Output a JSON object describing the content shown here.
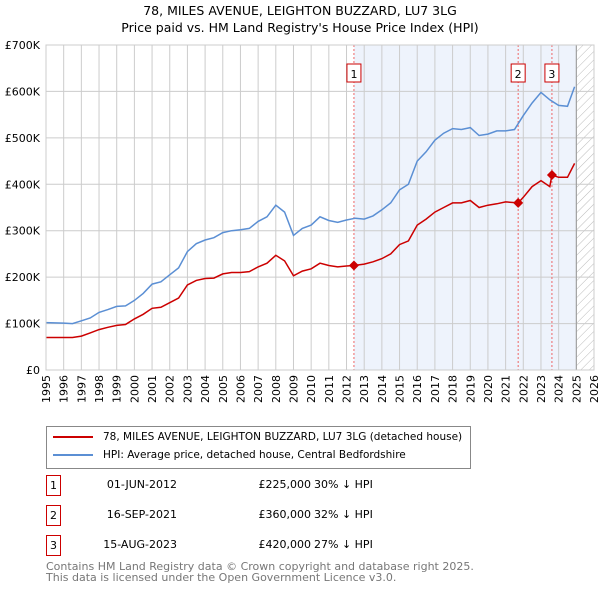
{
  "title": "78, MILES AVENUE, LEIGHTON BUZZARD, LU7 3LG",
  "subtitle": "Price paid vs. HM Land Registry's House Price Index (HPI)",
  "chart_data": {
    "type": "line",
    "xlim": [
      1995,
      2026
    ],
    "ylim": [
      0,
      700000
    ],
    "xticks": [
      "1995",
      "1996",
      "1997",
      "1998",
      "1999",
      "2000",
      "2001",
      "2002",
      "2003",
      "2004",
      "2005",
      "2006",
      "2007",
      "2008",
      "2009",
      "2010",
      "2011",
      "2012",
      "2013",
      "2014",
      "2015",
      "2016",
      "2017",
      "2018",
      "2019",
      "2020",
      "2021",
      "2022",
      "2023",
      "2024",
      "2025",
      "2026"
    ],
    "yticks": [
      {
        "v": 0,
        "label": "£0"
      },
      {
        "v": 100000,
        "label": "£100K"
      },
      {
        "v": 200000,
        "label": "£200K"
      },
      {
        "v": 300000,
        "label": "£300K"
      },
      {
        "v": 400000,
        "label": "£400K"
      },
      {
        "v": 500000,
        "label": "£500K"
      },
      {
        "v": 600000,
        "label": "£600K"
      },
      {
        "v": 700000,
        "label": "£700K"
      }
    ],
    "shaded_range": [
      2012.42,
      2025
    ],
    "hatched_range": [
      2025,
      2026
    ],
    "series": [
      {
        "name": "78, MILES AVENUE, LEIGHTON BUZZARD, LU7 3LG (detached house)",
        "color": "#cc0000",
        "x": [
          1995,
          1996,
          1996.5,
          1997,
          1997.5,
          1998,
          1998.5,
          1999,
          1999.5,
          2000,
          2000.5,
          2001,
          2001.5,
          2002,
          2002.5,
          2003,
          2003.5,
          2004,
          2004.5,
          2005,
          2005.5,
          2006,
          2006.5,
          2007,
          2007.5,
          2008,
          2008.5,
          2009,
          2009.5,
          2010,
          2010.5,
          2011,
          2011.5,
          2012,
          2012.42,
          2013,
          2013.5,
          2014,
          2014.5,
          2015,
          2015.5,
          2016,
          2016.5,
          2017,
          2017.5,
          2018,
          2018.5,
          2019,
          2019.5,
          2020,
          2020.5,
          2021,
          2021.71,
          2022,
          2022.5,
          2023,
          2023.5,
          2023.62,
          2024,
          2024.5,
          2024.9
        ],
        "y": [
          70,
          70,
          70,
          73,
          80,
          87,
          92,
          96,
          98,
          110,
          120,
          133,
          135,
          145,
          155,
          183,
          193,
          197,
          198,
          207,
          210,
          210,
          212,
          222,
          230,
          247,
          235,
          203,
          213,
          218,
          230,
          225,
          222,
          224,
          225,
          228,
          233,
          240,
          250,
          270,
          278,
          312,
          325,
          340,
          350,
          360,
          360,
          365,
          350,
          355,
          358,
          362,
          360,
          372,
          395,
          408,
          395,
          420,
          415,
          415,
          445
        ]
      },
      {
        "name": "HPI: Average price, detached house, Central Bedfordshire",
        "color": "#5b8fd4",
        "x": [
          1995,
          1996,
          1996.5,
          1997,
          1997.5,
          1998,
          1998.5,
          1999,
          1999.5,
          2000,
          2000.5,
          2001,
          2001.5,
          2002,
          2002.5,
          2003,
          2003.5,
          2004,
          2004.5,
          2005,
          2005.5,
          2006,
          2006.5,
          2007,
          2007.5,
          2008,
          2008.5,
          2009,
          2009.5,
          2010,
          2010.5,
          2011,
          2011.5,
          2012,
          2012.5,
          2013,
          2013.5,
          2014,
          2014.5,
          2015,
          2015.5,
          2016,
          2016.5,
          2017,
          2017.5,
          2018,
          2018.5,
          2019,
          2019.5,
          2020,
          2020.5,
          2021,
          2021.5,
          2022,
          2022.5,
          2023,
          2023.5,
          2024,
          2024.5,
          2024.9
        ],
        "y": [
          102,
          101,
          100,
          106,
          112,
          124,
          130,
          137,
          138,
          150,
          165,
          185,
          190,
          205,
          220,
          255,
          272,
          280,
          285,
          296,
          300,
          302,
          305,
          320,
          330,
          355,
          340,
          290,
          305,
          312,
          330,
          322,
          318,
          323,
          327,
          325,
          332,
          345,
          360,
          388,
          400,
          450,
          470,
          495,
          510,
          520,
          518,
          522,
          505,
          508,
          515,
          515,
          518,
          548,
          575,
          598,
          582,
          570,
          568,
          610
        ]
      }
    ],
    "y_units": "thousands GBP",
    "sales": [
      {
        "id": "1",
        "x": 2012.42,
        "y": 225
      },
      {
        "id": "2",
        "x": 2021.71,
        "y": 360
      },
      {
        "id": "3",
        "x": 2023.62,
        "y": 420
      }
    ]
  },
  "legend": [
    "78, MILES AVENUE, LEIGHTON BUZZARD, LU7 3LG (detached house)",
    "HPI: Average price, detached house, Central Bedfordshire"
  ],
  "transactions": [
    {
      "id": "1",
      "date": "01-JUN-2012",
      "price": "£225,000",
      "hpi": "30% ↓ HPI"
    },
    {
      "id": "2",
      "date": "16-SEP-2021",
      "price": "£360,000",
      "hpi": "32% ↓ HPI"
    },
    {
      "id": "3",
      "date": "15-AUG-2023",
      "price": "£420,000",
      "hpi": "27% ↓ HPI"
    }
  ],
  "footer": [
    "Contains HM Land Registry data © Crown copyright and database right 2025.",
    "This data is licensed under the Open Government Licence v3.0."
  ]
}
